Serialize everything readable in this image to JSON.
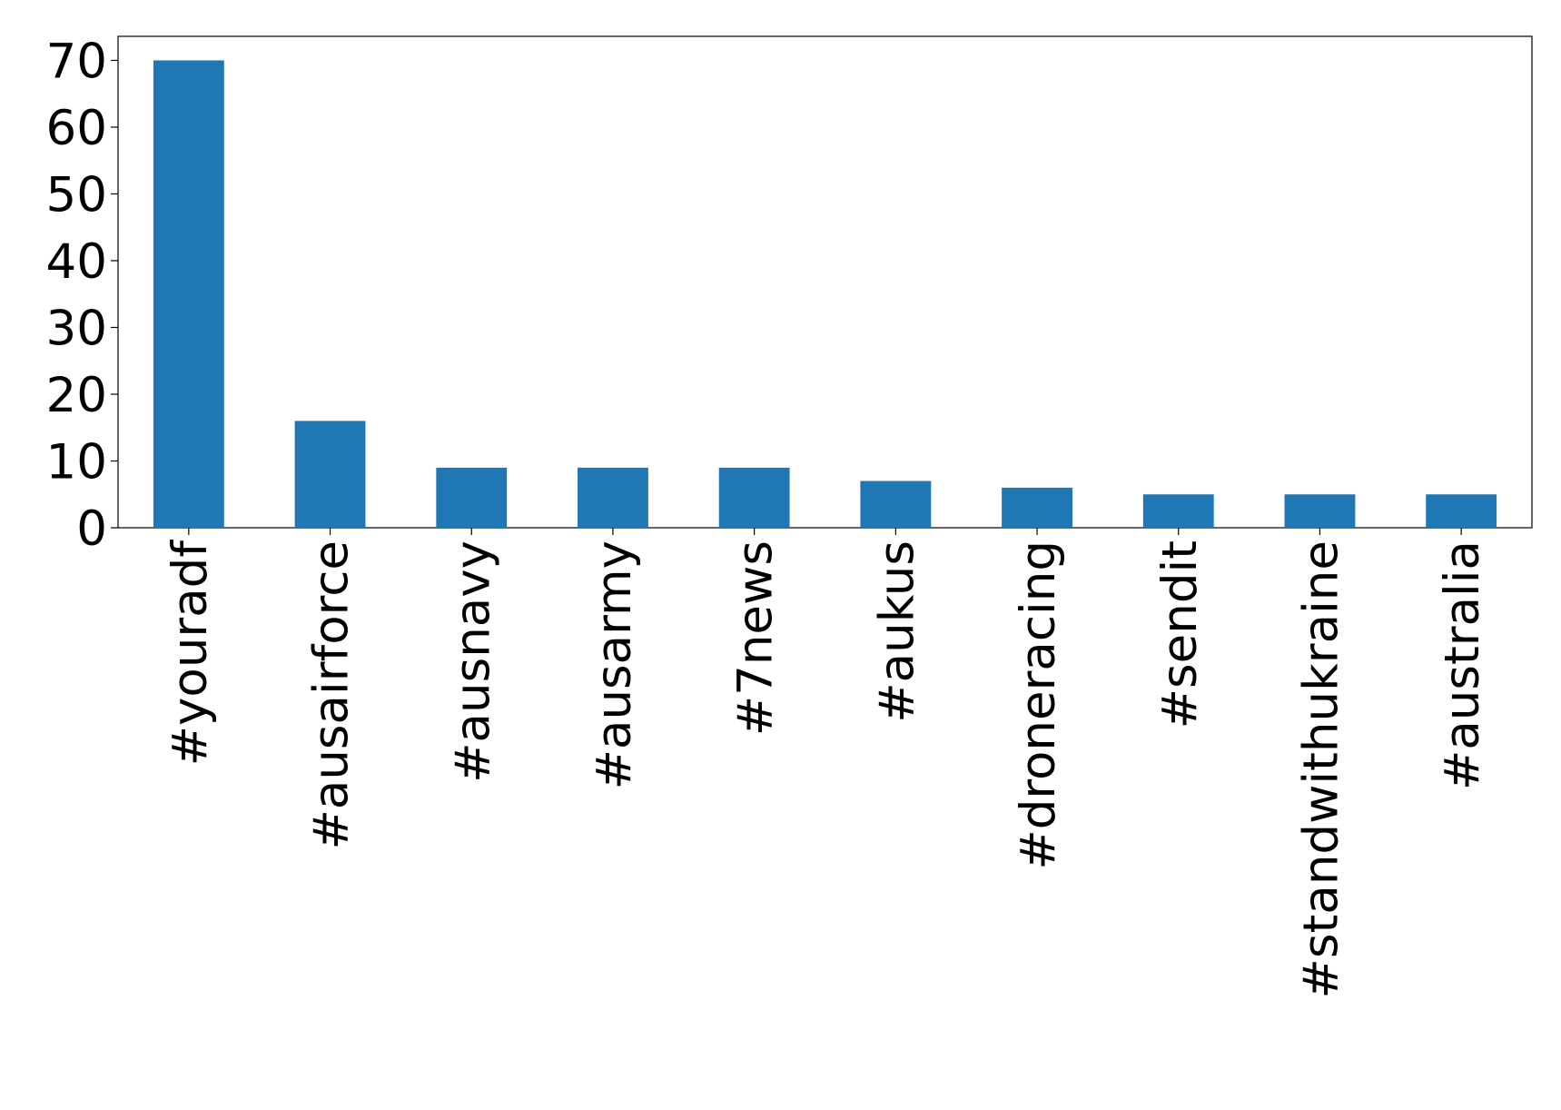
{
  "chart_data": {
    "type": "bar",
    "categories": [
      "#youradf",
      "#ausairforce",
      "#ausnavy",
      "#ausarmy",
      "#7news",
      "#aukus",
      "#droneracing",
      "#sendit",
      "#standwithukraine",
      "#australia"
    ],
    "values": [
      70,
      16,
      9,
      9,
      9,
      7,
      6,
      5,
      5,
      5
    ],
    "color": "#1f77b4",
    "ylim": [
      0,
      73.6
    ],
    "yticks": [
      0,
      10,
      20,
      30,
      40,
      50,
      60,
      70
    ],
    "grid": false
  }
}
